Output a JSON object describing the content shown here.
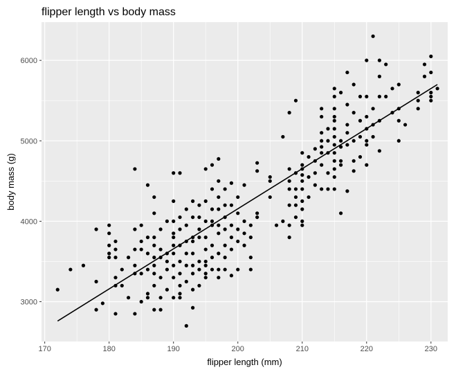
{
  "chart_data": {
    "type": "scatter",
    "title": "flipper length vs body mass",
    "xlabel": "flipper length (mm)",
    "ylabel": "body mass (g)",
    "xlim": [
      169.5,
      232.6
    ],
    "ylim": [
      2505,
      6475
    ],
    "x_ticks": [
      170,
      180,
      190,
      200,
      210,
      220,
      230
    ],
    "y_ticks": [
      3000,
      4000,
      5000,
      6000
    ],
    "grid": true,
    "legend": "none",
    "colors": {
      "panel": "#ebebeb",
      "grid": "#ffffff",
      "points": "#000000",
      "line": "#000000"
    },
    "points": [
      [
        172,
        3150
      ],
      [
        174,
        3400
      ],
      [
        176,
        3450
      ],
      [
        178,
        3900
      ],
      [
        178,
        3250
      ],
      [
        178,
        2900
      ],
      [
        179,
        2980
      ],
      [
        180,
        3950
      ],
      [
        180,
        3850
      ],
      [
        180,
        3700
      ],
      [
        180,
        3600
      ],
      [
        180,
        3550
      ],
      [
        181,
        3750
      ],
      [
        181,
        3650
      ],
      [
        181,
        3550
      ],
      [
        181,
        3300
      ],
      [
        181,
        3200
      ],
      [
        181,
        2850
      ],
      [
        182,
        3200
      ],
      [
        182,
        3400
      ],
      [
        183,
        3550
      ],
      [
        183,
        3050
      ],
      [
        184,
        4650
      ],
      [
        184,
        3900
      ],
      [
        184,
        3650
      ],
      [
        184,
        3450
      ],
      [
        184,
        3350
      ],
      [
        184,
        2850
      ],
      [
        185,
        3950
      ],
      [
        185,
        3750
      ],
      [
        185,
        3650
      ],
      [
        185,
        3350
      ],
      [
        185,
        3000
      ],
      [
        186,
        4450
      ],
      [
        186,
        3800
      ],
      [
        186,
        3600
      ],
      [
        186,
        3400
      ],
      [
        186,
        3100
      ],
      [
        186,
        3050
      ],
      [
        187,
        4300
      ],
      [
        187,
        4100
      ],
      [
        187,
        3800
      ],
      [
        187,
        3700
      ],
      [
        187,
        3550
      ],
      [
        187,
        3450
      ],
      [
        187,
        3350
      ],
      [
        187,
        3200
      ],
      [
        187,
        2900
      ],
      [
        188,
        3900
      ],
      [
        188,
        3650
      ],
      [
        188,
        3550
      ],
      [
        188,
        3300
      ],
      [
        188,
        3050
      ],
      [
        188,
        2900
      ],
      [
        189,
        4000
      ],
      [
        189,
        3600
      ],
      [
        189,
        3500
      ],
      [
        189,
        3150
      ],
      [
        189,
        3400
      ],
      [
        190,
        4600
      ],
      [
        190,
        4250
      ],
      [
        190,
        4000
      ],
      [
        190,
        3850
      ],
      [
        190,
        3700
      ],
      [
        190,
        3600
      ],
      [
        190,
        3450
      ],
      [
        190,
        3300
      ],
      [
        190,
        3050
      ],
      [
        190,
        3800
      ],
      [
        191,
        4600
      ],
      [
        191,
        4050
      ],
      [
        191,
        3900
      ],
      [
        191,
        3700
      ],
      [
        191,
        3500
      ],
      [
        191,
        3350
      ],
      [
        191,
        3100
      ],
      [
        191,
        3200
      ],
      [
        191,
        3050
      ],
      [
        192,
        4150
      ],
      [
        192,
        3950
      ],
      [
        192,
        3750
      ],
      [
        192,
        3600
      ],
      [
        192,
        3450
      ],
      [
        192,
        3250
      ],
      [
        192,
        2700
      ],
      [
        193,
        4250
      ],
      [
        193,
        4050
      ],
      [
        193,
        3800
      ],
      [
        193,
        3750
      ],
      [
        193,
        3600
      ],
      [
        193,
        3450
      ],
      [
        193,
        3350
      ],
      [
        193,
        3150
      ],
      [
        193,
        2925
      ],
      [
        194,
        4200
      ],
      [
        194,
        3900
      ],
      [
        194,
        3800
      ],
      [
        194,
        3500
      ],
      [
        194,
        3400
      ],
      [
        194,
        3200
      ],
      [
        194,
        4050
      ],
      [
        195,
        4650
      ],
      [
        195,
        4250
      ],
      [
        195,
        4000
      ],
      [
        195,
        3800
      ],
      [
        195,
        3650
      ],
      [
        195,
        3500
      ],
      [
        195,
        3350
      ],
      [
        195,
        3300
      ],
      [
        195,
        3450
      ],
      [
        196,
        4700
      ],
      [
        196,
        4400
      ],
      [
        196,
        4150
      ],
      [
        196,
        3950
      ],
      [
        196,
        3700
      ],
      [
        196,
        3550
      ],
      [
        196,
        3400
      ],
      [
        196,
        4000
      ],
      [
        197,
        4775
      ],
      [
        197,
        4500
      ],
      [
        197,
        4150
      ],
      [
        197,
        3950
      ],
      [
        197,
        3850
      ],
      [
        197,
        3600
      ],
      [
        197,
        3300
      ],
      [
        197,
        3400
      ],
      [
        197,
        4300
      ],
      [
        198,
        4400
      ],
      [
        198,
        4200
      ],
      [
        198,
        3900
      ],
      [
        198,
        3700
      ],
      [
        198,
        3550
      ],
      [
        198,
        3400
      ],
      [
        198,
        4050
      ],
      [
        199,
        4475
      ],
      [
        199,
        4200
      ],
      [
        199,
        3950
      ],
      [
        199,
        3800
      ],
      [
        199,
        3325
      ],
      [
        199,
        3650
      ],
      [
        200,
        4300
      ],
      [
        200,
        4100
      ],
      [
        200,
        3900
      ],
      [
        200,
        3400
      ],
      [
        200,
        3750
      ],
      [
        201,
        4450
      ],
      [
        201,
        4000
      ],
      [
        201,
        3850
      ],
      [
        201,
        3700
      ],
      [
        202,
        3950
      ],
      [
        202,
        3800
      ],
      [
        202,
        3550
      ],
      [
        202,
        3400
      ],
      [
        203,
        4725
      ],
      [
        203,
        4625
      ],
      [
        203,
        4100
      ],
      [
        203,
        4050
      ],
      [
        205,
        4550
      ],
      [
        205,
        4500
      ],
      [
        205,
        4300
      ],
      [
        206,
        3950
      ],
      [
        207,
        5050
      ],
      [
        207,
        4000
      ],
      [
        208,
        5350
      ],
      [
        208,
        4650
      ],
      [
        208,
        4500
      ],
      [
        208,
        4400
      ],
      [
        208,
        4200
      ],
      [
        208,
        3950
      ],
      [
        208,
        3800
      ],
      [
        209,
        5500
      ],
      [
        209,
        4600
      ],
      [
        209,
        4400
      ],
      [
        209,
        4300
      ],
      [
        209,
        4200
      ],
      [
        209,
        4050
      ],
      [
        210,
        4850
      ],
      [
        210,
        4650
      ],
      [
        210,
        4500
      ],
      [
        210,
        4400
      ],
      [
        210,
        4250
      ],
      [
        210,
        4150
      ],
      [
        210,
        4000
      ],
      [
        210,
        3950
      ],
      [
        210,
        4700
      ],
      [
        210,
        4575
      ],
      [
        211,
        4800
      ],
      [
        211,
        4550
      ],
      [
        211,
        4300
      ],
      [
        212,
        4750
      ],
      [
        212,
        4600
      ],
      [
        212,
        4450
      ],
      [
        212,
        4900
      ],
      [
        213,
        5400
      ],
      [
        213,
        5300
      ],
      [
        213,
        5100
      ],
      [
        213,
        4850
      ],
      [
        213,
        4700
      ],
      [
        213,
        4400
      ],
      [
        213,
        4925
      ],
      [
        213,
        5000
      ],
      [
        214,
        5000
      ],
      [
        214,
        4850
      ],
      [
        214,
        4600
      ],
      [
        214,
        4400
      ],
      [
        214,
        5150
      ],
      [
        215,
        5650
      ],
      [
        215,
        5550
      ],
      [
        215,
        5400
      ],
      [
        215,
        5250
      ],
      [
        215,
        5150
      ],
      [
        215,
        5050
      ],
      [
        215,
        4950
      ],
      [
        215,
        4850
      ],
      [
        215,
        4750
      ],
      [
        215,
        4650
      ],
      [
        215,
        4550
      ],
      [
        215,
        4400
      ],
      [
        215,
        5300
      ],
      [
        216,
        5600
      ],
      [
        216,
        5000
      ],
      [
        216,
        4750
      ],
      [
        216,
        4100
      ],
      [
        216,
        4925
      ],
      [
        216,
        4700
      ],
      [
        217,
        5850
      ],
      [
        217,
        5450
      ],
      [
        217,
        5200
      ],
      [
        217,
        5100
      ],
      [
        217,
        4950
      ],
      [
        217,
        4375
      ],
      [
        218,
        5700
      ],
      [
        218,
        5350
      ],
      [
        218,
        5000
      ],
      [
        218,
        4625
      ],
      [
        218,
        4750
      ],
      [
        219,
        5550
      ],
      [
        219,
        5250
      ],
      [
        219,
        4800
      ],
      [
        219,
        5050
      ],
      [
        220,
        6000
      ],
      [
        220,
        5550
      ],
      [
        220,
        5300
      ],
      [
        220,
        5150
      ],
      [
        220,
        5000
      ],
      [
        220,
        4950
      ],
      [
        220,
        4700
      ],
      [
        221,
        6300
      ],
      [
        221,
        5400
      ],
      [
        221,
        5200
      ],
      [
        221,
        5050
      ],
      [
        222,
        6000
      ],
      [
        222,
        5800
      ],
      [
        222,
        5550
      ],
      [
        222,
        5250
      ],
      [
        222,
        4875
      ],
      [
        223,
        5950
      ],
      [
        223,
        5550
      ],
      [
        224,
        5650
      ],
      [
        224,
        5350
      ],
      [
        225,
        5700
      ],
      [
        225,
        5400
      ],
      [
        225,
        5000
      ],
      [
        225,
        5250
      ],
      [
        226,
        5200
      ],
      [
        228,
        5600
      ],
      [
        228,
        5500
      ],
      [
        228,
        5400
      ],
      [
        229,
        5950
      ],
      [
        229,
        5800
      ],
      [
        230,
        6050
      ],
      [
        230,
        5850
      ],
      [
        230,
        5600
      ],
      [
        230,
        5550
      ],
      [
        230,
        5500
      ],
      [
        231,
        5650
      ]
    ],
    "regression_line": {
      "x": [
        172,
        231
      ],
      "y": [
        2760,
        5700
      ]
    }
  }
}
